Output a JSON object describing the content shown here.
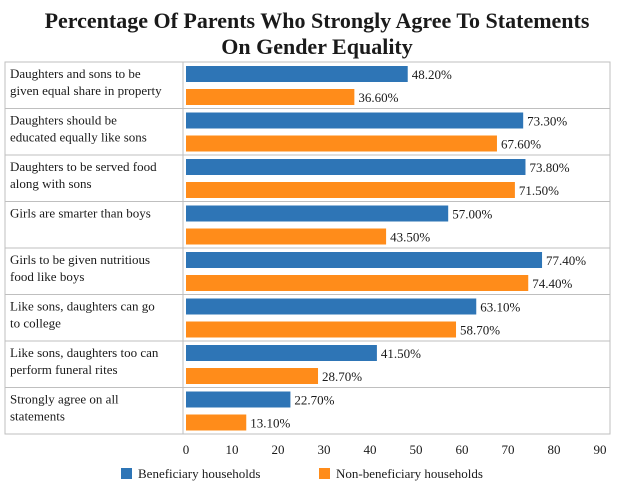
{
  "chart_data": {
    "type": "bar",
    "orientation": "horizontal",
    "title_lines": [
      "Percentage Of Parents Who Strongly Agree To Statements",
      "On Gender Equality"
    ],
    "categories": [
      [
        "Daughters and sons to be",
        "given equal share in property"
      ],
      [
        "Daughters should be",
        "educated equally like sons"
      ],
      [
        "Daughters to be served food",
        "along with sons"
      ],
      [
        "Girls are smarter than boys"
      ],
      [
        "Girls to be given nutritious",
        "food like boys"
      ],
      [
        "Like sons, daughters can go",
        "to college"
      ],
      [
        "Like sons, daughters too can",
        "perform funeral rites"
      ],
      [
        "Strongly agree on all",
        "statements"
      ]
    ],
    "series": [
      {
        "name": "Beneficiary households",
        "color": "#2e75b6",
        "values": [
          48.2,
          73.3,
          73.8,
          57.0,
          77.4,
          63.1,
          41.5,
          22.7
        ],
        "labels": [
          "48.20%",
          "73.30%",
          "73.80%",
          "57.00%",
          "77.40%",
          "63.10%",
          "41.50%",
          "22.70%"
        ]
      },
      {
        "name": "Non-beneficiary households",
        "color": "#ff8c1a",
        "values": [
          36.6,
          67.6,
          71.5,
          43.5,
          74.4,
          58.7,
          28.7,
          13.1
        ],
        "labels": [
          "36.60%",
          "67.60%",
          "71.50%",
          "43.50%",
          "74.40%",
          "58.70%",
          "28.70%",
          "13.10%"
        ]
      }
    ],
    "xlim": [
      0,
      90
    ],
    "xticks": [
      0,
      10,
      20,
      30,
      40,
      50,
      60,
      70,
      80,
      90
    ],
    "tick_labels": [
      "0",
      "10",
      "20",
      "30",
      "40",
      "50",
      "60",
      "70",
      "80",
      "90"
    ],
    "grid": false,
    "legend_position": "bottom"
  }
}
